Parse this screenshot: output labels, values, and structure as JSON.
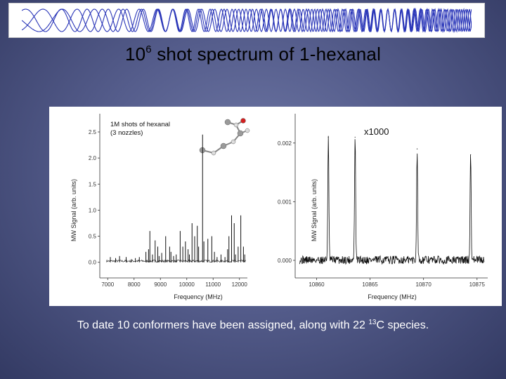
{
  "slide": {
    "title_base": "10",
    "title_exp": "6",
    "title_rest": " shot spectrum of 1-hexanal",
    "caption_pre": "To date 10 conformers have been assigned, along with 22 ",
    "caption_exp": "13",
    "caption_post": "C species.",
    "colors": {
      "background": "#555d8c",
      "banner_wave": "#2a36b8",
      "title_text": "#000000",
      "caption_text": "#ffffff"
    }
  },
  "chart_data": [
    {
      "type": "line",
      "annotation_line1": "1M shots of hexanal",
      "annotation_line2": "(3 nozzles)",
      "xlabel": "Frequency (MHz)",
      "ylabel": "MW Signal (arb. units)",
      "xlim": [
        6700,
        12300
      ],
      "ylim": [
        -0.3,
        2.85
      ],
      "x_ticks": [
        "7000",
        "8000",
        "9000",
        "10000",
        "11000",
        "12000"
      ],
      "y_ticks": [
        "0.0",
        "0.5",
        "1.0",
        "1.5",
        "2.0",
        "2.5"
      ],
      "peaks": [
        [
          7100,
          0.1
        ],
        [
          7300,
          0.08
        ],
        [
          7450,
          0.12
        ],
        [
          7700,
          0.1
        ],
        [
          7900,
          0.06
        ],
        [
          8050,
          0.08
        ],
        [
          8200,
          0.1
        ],
        [
          8450,
          0.2
        ],
        [
          8550,
          0.25
        ],
        [
          8600,
          0.6
        ],
        [
          8700,
          0.15
        ],
        [
          8800,
          0.42
        ],
        [
          8900,
          0.3
        ],
        [
          8950,
          0.12
        ],
        [
          9050,
          0.18
        ],
        [
          9200,
          0.5
        ],
        [
          9350,
          0.3
        ],
        [
          9400,
          0.2
        ],
        [
          9500,
          0.12
        ],
        [
          9600,
          0.15
        ],
        [
          9750,
          0.6
        ],
        [
          9850,
          0.3
        ],
        [
          9950,
          0.4
        ],
        [
          10050,
          0.25
        ],
        [
          10100,
          0.15
        ],
        [
          10200,
          0.75
        ],
        [
          10300,
          0.5
        ],
        [
          10400,
          0.7
        ],
        [
          10450,
          0.3
        ],
        [
          10600,
          2.45
        ],
        [
          10650,
          0.4
        ],
        [
          10800,
          0.45
        ],
        [
          10950,
          0.5
        ],
        [
          11050,
          0.2
        ],
        [
          11150,
          0.1
        ],
        [
          11300,
          0.15
        ],
        [
          11450,
          0.1
        ],
        [
          11550,
          0.25
        ],
        [
          11600,
          0.5
        ],
        [
          11700,
          0.9
        ],
        [
          11800,
          0.75
        ],
        [
          11850,
          0.15
        ],
        [
          11950,
          0.3
        ],
        [
          12050,
          0.9
        ],
        [
          12150,
          0.3
        ],
        [
          12200,
          0.15
        ]
      ]
    },
    {
      "type": "line",
      "zoom_label": "x1000",
      "xlabel": "Frequency (MHz)",
      "ylabel": "MW Signal (arb. units)",
      "xlim": [
        10858,
        10876
      ],
      "ylim": [
        -0.0003,
        0.0025
      ],
      "x_ticks": [
        "10860",
        "10865",
        "10870",
        "10875"
      ],
      "x_tick_values": [
        10860,
        10865,
        10870,
        10875
      ],
      "y_ticks": [
        "0.000",
        "0.001",
        "0.002"
      ],
      "y_tick_values": [
        0,
        0.001,
        0.002
      ],
      "peaks": [
        [
          10861.1,
          0.0021
        ],
        [
          10863.6,
          0.0021
        ],
        [
          10869.4,
          0.0019
        ],
        [
          10874.4,
          0.0018
        ]
      ]
    }
  ]
}
